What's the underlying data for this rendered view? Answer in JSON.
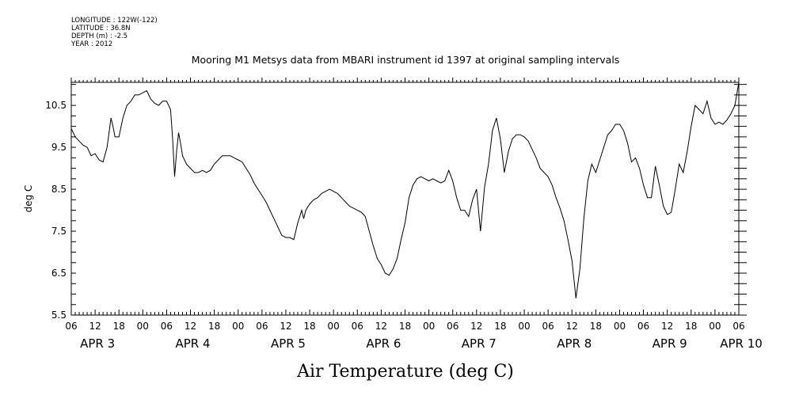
{
  "header": {
    "lines": [
      "LONGITUDE : 122W(-122)",
      "LATITUDE : 36.8N",
      "DEPTH (m) : -2.5",
      "YEAR : 2012"
    ]
  },
  "chart_data": {
    "type": "line",
    "title": "Mooring M1 Metsys data from MBARI instrument id 1397 at original sampling intervals",
    "xlabel": "Air Temperature (deg C)",
    "ylabel": "deg C",
    "ylim": [
      5.5,
      11.05
    ],
    "xlim_hours": [
      0,
      168
    ],
    "yticks": [
      5.5,
      6.5,
      7.5,
      8.5,
      9.5,
      10.5
    ],
    "hour_tick_labels": [
      "06",
      "12",
      "18",
      "00",
      "06",
      "12",
      "18",
      "00",
      "06",
      "12",
      "18",
      "00",
      "06",
      "12",
      "18",
      "00",
      "06",
      "12",
      "18",
      "00",
      "06",
      "12",
      "18",
      "00",
      "06",
      "12",
      "18",
      "00",
      "06"
    ],
    "date_labels": [
      {
        "text": "APR  3",
        "hour": 6
      },
      {
        "text": "APR  4",
        "hour": 30
      },
      {
        "text": "APR  5",
        "hour": 54
      },
      {
        "text": "APR  6",
        "hour": 78
      },
      {
        "text": "APR  7",
        "hour": 102
      },
      {
        "text": "APR  8",
        "hour": 126
      },
      {
        "text": "APR  9",
        "hour": 150
      },
      {
        "text": "APR 10",
        "hour": 168
      }
    ],
    "series": [
      {
        "x": [
          0,
          1,
          2,
          3,
          4,
          5,
          6,
          7,
          8,
          9,
          10,
          10.5,
          11,
          12,
          13,
          14,
          15,
          16,
          17,
          18,
          19,
          20,
          21,
          22,
          23,
          24,
          25,
          25.5,
          26,
          26.5,
          27,
          27.5,
          28,
          29,
          30,
          31,
          32,
          33,
          34,
          35,
          36,
          37,
          38,
          39,
          40,
          41,
          42,
          43,
          44,
          45,
          46,
          47,
          48,
          49,
          50,
          51,
          52,
          53,
          54,
          55,
          56,
          57,
          58,
          58.5,
          59,
          60,
          61,
          62,
          63,
          64,
          65,
          66,
          67,
          68,
          69,
          70,
          71,
          72,
          73,
          74,
          75,
          76,
          77,
          78,
          79,
          80,
          81,
          82,
          83,
          84,
          85,
          86,
          87,
          88,
          89,
          90,
          91,
          92,
          93,
          94,
          95,
          96,
          97,
          98,
          99,
          100,
          101,
          102,
          103,
          104,
          105,
          106,
          107,
          108,
          109,
          110,
          111,
          112,
          113,
          114,
          115,
          116,
          117,
          118,
          119,
          120,
          121,
          122,
          123,
          124,
          125,
          126,
          127,
          128,
          129,
          130,
          131,
          132,
          133,
          134,
          135,
          136,
          137,
          138,
          139,
          140,
          141,
          142,
          143,
          144,
          145,
          146,
          147,
          148,
          149,
          150,
          151,
          152,
          153,
          154,
          155,
          156,
          157,
          158,
          159,
          160,
          161,
          162,
          163,
          164,
          165,
          166,
          167,
          168
        ],
        "y": [
          9.95,
          9.75,
          9.65,
          9.55,
          9.5,
          9.3,
          9.35,
          9.2,
          9.15,
          9.5,
          10.2,
          10.0,
          9.75,
          9.75,
          10.2,
          10.5,
          10.6,
          10.75,
          10.75,
          10.8,
          10.85,
          10.65,
          10.55,
          10.5,
          10.6,
          10.6,
          10.4,
          9.7,
          8.8,
          9.4,
          9.85,
          9.6,
          9.3,
          9.1,
          9.0,
          8.9,
          8.9,
          8.95,
          8.9,
          8.95,
          9.1,
          9.2,
          9.3,
          9.3,
          9.3,
          9.25,
          9.2,
          9.15,
          9.0,
          8.85,
          8.65,
          8.5,
          8.35,
          8.2,
          8.0,
          7.8,
          7.6,
          7.4,
          7.35,
          7.35,
          7.3,
          7.7,
          8.0,
          7.8,
          8.0,
          8.15,
          8.25,
          8.3,
          8.4,
          8.45,
          8.5,
          8.45,
          8.4,
          8.3,
          8.2,
          8.1,
          8.05,
          8.0,
          7.95,
          7.85,
          7.5,
          7.15,
          6.85,
          6.7,
          6.5,
          6.45,
          6.6,
          6.85,
          7.3,
          7.7,
          8.3,
          8.6,
          8.75,
          8.8,
          8.75,
          8.7,
          8.75,
          8.7,
          8.65,
          8.7,
          8.95,
          8.7,
          8.3,
          8.0,
          8.0,
          7.85,
          8.25,
          8.5,
          7.5,
          8.55,
          9.1,
          9.9,
          10.2,
          9.7,
          8.9,
          9.4,
          9.7,
          9.8,
          9.8,
          9.75,
          9.65,
          9.45,
          9.25,
          9.0,
          8.9,
          8.8,
          8.6,
          8.3,
          8.05,
          7.75,
          7.3,
          6.8,
          5.9,
          6.6,
          7.8,
          8.7,
          9.1,
          8.9,
          9.2,
          9.5,
          9.8,
          9.9,
          10.05,
          10.05,
          9.9,
          9.6,
          9.15,
          9.25,
          9.0,
          8.6,
          8.3,
          8.3,
          9.05,
          8.6,
          8.1,
          7.9,
          7.95,
          8.5,
          9.1,
          8.9,
          9.4,
          10.0,
          10.5,
          10.4,
          10.3,
          10.6,
          10.2,
          10.05,
          10.1,
          10.05,
          10.15,
          10.3,
          10.5,
          11.05
        ]
      }
    ]
  }
}
